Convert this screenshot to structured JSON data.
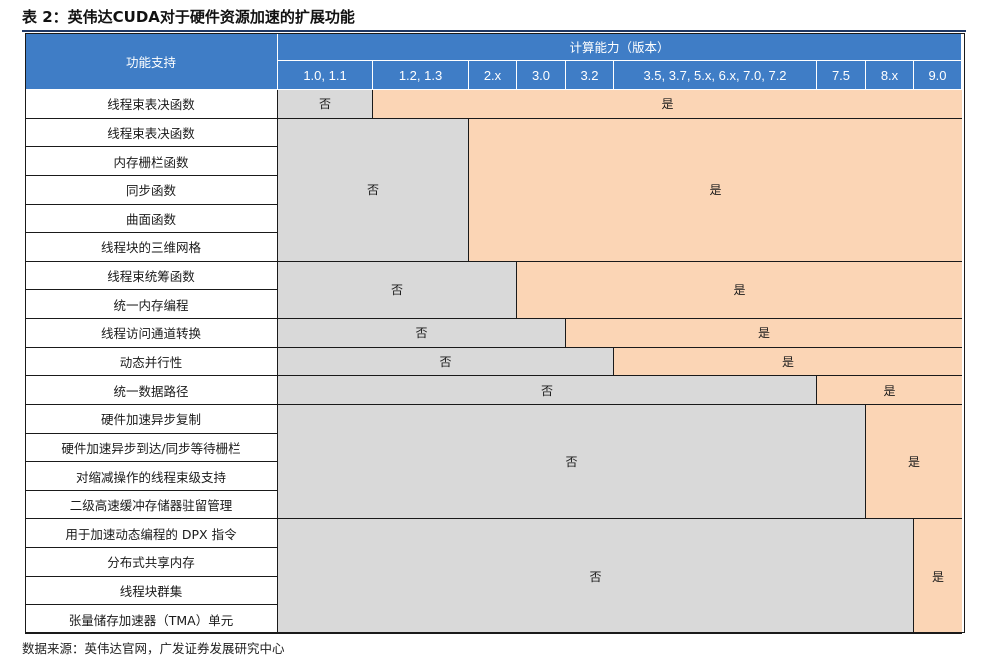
{
  "title": "表 2：英伟达CUDA对于硬件资源加速的扩展功能",
  "header": {
    "feature_col": "功能支持",
    "capability_group": "计算能力（版本）",
    "versions": [
      "1.0, 1.1",
      "1.2, 1.3",
      "2.x",
      "3.0",
      "3.2",
      "3.5, 3.7, 5.x, 6.x, 7.0, 7.2",
      "7.5",
      "8.x",
      "9.0"
    ]
  },
  "no_label": "否",
  "yes_label": "是",
  "features": [
    "线程束表决函数",
    "线程束表决函数",
    "内存栅栏函数",
    "同步函数",
    "曲面函数",
    "线程块的三维网格",
    "线程束统筹函数",
    "统一内存编程",
    "线程访问通道转换",
    "动态并行性",
    "统一数据路径",
    "硬件加速异步复制",
    "硬件加速异步到达/同步等待栅栏",
    "对缩减操作的线程束级支持",
    "二级高速缓冲存储器驻留管理",
    "用于加速动态编程的 DPX 指令",
    "分布式共享内存",
    "线程块群集",
    "张量储存加速器（TMA）单元"
  ],
  "support_groups": [
    {
      "rows": [
        0
      ],
      "first_supported_version": "1.2, 1.3"
    },
    {
      "rows": [
        1,
        2,
        3,
        4,
        5
      ],
      "first_supported_version": "2.x"
    },
    {
      "rows": [
        6,
        7
      ],
      "first_supported_version": "3.0"
    },
    {
      "rows": [
        8
      ],
      "first_supported_version": "3.2"
    },
    {
      "rows": [
        9
      ],
      "first_supported_version": "3.5, 3.7, 5.x, 6.x, 7.0, 7.2"
    },
    {
      "rows": [
        10
      ],
      "first_supported_version": "7.5"
    },
    {
      "rows": [
        11,
        12,
        13,
        14
      ],
      "first_supported_version": "8.x"
    },
    {
      "rows": [
        15,
        16,
        17,
        18
      ],
      "first_supported_version": "9.0"
    }
  ],
  "source": "数据来源：英伟达官网，广发证券发展研究中心",
  "colors": {
    "header_bg": "#3f7dc6",
    "no_bg": "#d9d9d9",
    "yes_bg": "#fbd5b5"
  }
}
